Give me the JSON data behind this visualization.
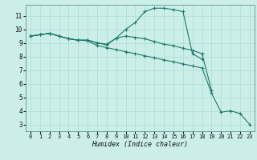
{
  "title": "",
  "xlabel": "Humidex (Indice chaleur)",
  "bg_color": "#cceee8",
  "line_color": "#1a7a6e",
  "grid_color": "#aaddcc",
  "xlim": [
    -0.5,
    23.5
  ],
  "ylim": [
    2.5,
    11.8
  ],
  "yticks": [
    3,
    4,
    5,
    6,
    7,
    8,
    9,
    10,
    11
  ],
  "xticks": [
    0,
    1,
    2,
    3,
    4,
    5,
    6,
    7,
    8,
    9,
    10,
    11,
    12,
    13,
    14,
    15,
    16,
    17,
    18,
    19,
    20,
    21,
    22,
    23
  ],
  "line1_x": [
    0,
    1,
    2,
    3,
    4,
    5,
    6,
    7,
    8,
    9,
    10,
    11,
    12,
    13,
    14,
    15,
    16,
    17,
    18,
    19,
    20,
    21,
    22,
    23
  ],
  "line1_y": [
    9.5,
    9.6,
    9.7,
    9.5,
    9.3,
    9.2,
    9.2,
    9.0,
    8.9,
    9.35,
    10.0,
    10.5,
    11.3,
    11.55,
    11.55,
    11.45,
    11.3,
    8.2,
    7.8,
    null,
    null,
    null,
    null,
    null
  ],
  "line2_x": [
    0,
    1,
    2,
    3,
    4,
    5,
    6,
    7,
    8,
    9,
    10,
    11,
    12,
    13,
    14,
    15,
    16,
    17,
    18,
    19,
    20,
    21,
    22,
    23
  ],
  "line2_y": [
    9.5,
    9.6,
    9.7,
    9.5,
    9.3,
    9.2,
    9.2,
    9.0,
    8.85,
    9.35,
    9.5,
    9.4,
    9.3,
    9.1,
    8.9,
    8.8,
    8.6,
    8.45,
    8.2,
    5.5,
    null,
    null,
    null,
    null
  ],
  "line3_x": [
    0,
    1,
    2,
    3,
    4,
    5,
    6,
    7,
    8,
    9,
    10,
    11,
    12,
    13,
    14,
    15,
    16,
    17,
    18,
    19,
    20,
    21,
    22,
    23
  ],
  "line3_y": [
    9.5,
    9.6,
    9.7,
    9.5,
    9.3,
    9.2,
    9.15,
    8.8,
    8.65,
    8.5,
    8.35,
    8.2,
    8.05,
    7.9,
    7.75,
    7.6,
    7.45,
    7.3,
    7.15,
    5.3,
    3.9,
    4.0,
    3.8,
    3.0
  ]
}
